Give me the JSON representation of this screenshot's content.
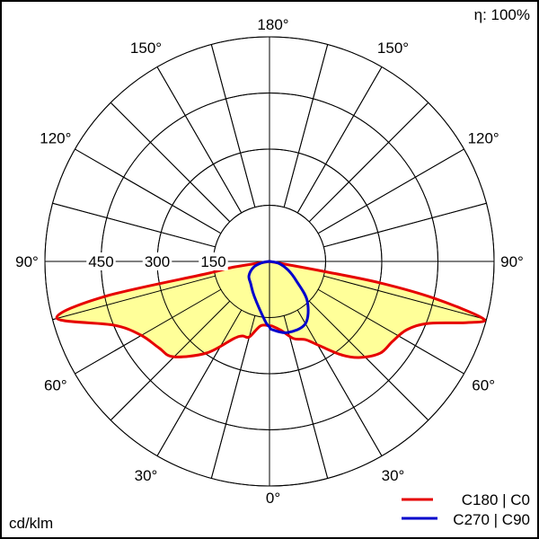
{
  "chart_data": {
    "type": "polar",
    "efficiency_label": "η: 100%",
    "unit_label": "cd/klm",
    "radial_ticks": [
      150,
      300,
      450,
      600
    ],
    "radial_tick_labels": [
      "150",
      "300",
      "450"
    ],
    "rmax": 600,
    "angle_labels": {
      "left": [
        "180°",
        "150°",
        "120°",
        "90°",
        "60°",
        "30°",
        "0°"
      ],
      "right": [
        "150°",
        "120°",
        "90°",
        "60°",
        "30°"
      ]
    },
    "grid": true,
    "grid_angle_step_deg": 15,
    "legend_placement": "bottom-right",
    "fill_color": "#FFFF99",
    "series": [
      {
        "name": "C180 | C0",
        "color": "#E60000",
        "filled": true,
        "left_plane": {
          "gamma": [
            0,
            8,
            15,
            20,
            25,
            34.5,
            45.3,
            52,
            60.2,
            67.7,
            75.1,
            78,
            79,
            80.8,
            90
          ],
          "values": [
            172,
            174,
            209,
            212,
            228,
            297,
            362,
            375,
            396,
            449,
            588,
            449,
            164,
            105,
            0
          ]
        },
        "right_plane": {
          "gamma": [
            0,
            2.4,
            9.6,
            17.4,
            24.7,
            31,
            37.6,
            43,
            50.3,
            57,
            63.6,
            68.7,
            72.8,
            75,
            77.4,
            79,
            79.6,
            90
          ],
          "values": [
            172,
            173,
            187,
            216,
            230,
            264,
            315,
            351,
            384,
            392,
            410,
            456,
            553,
            591,
            450,
            301,
            146,
            0
          ]
        }
      },
      {
        "name": "C270 | C90",
        "color": "#0000CC",
        "filled": false,
        "left_plane": {
          "gamma": [
            0,
            4.3,
            23.5,
            40,
            55,
            70,
            80,
            90
          ],
          "values": [
            175,
            159,
            102,
            78,
            67,
            45,
            20,
            0
          ]
        },
        "right_plane": {
          "gamma": [
            0,
            2,
            14,
            30,
            43.7,
            54,
            65,
            79,
            90
          ],
          "values": [
            175,
            182,
            196,
            192,
            146,
            89,
            55,
            24,
            0
          ]
        }
      }
    ]
  }
}
